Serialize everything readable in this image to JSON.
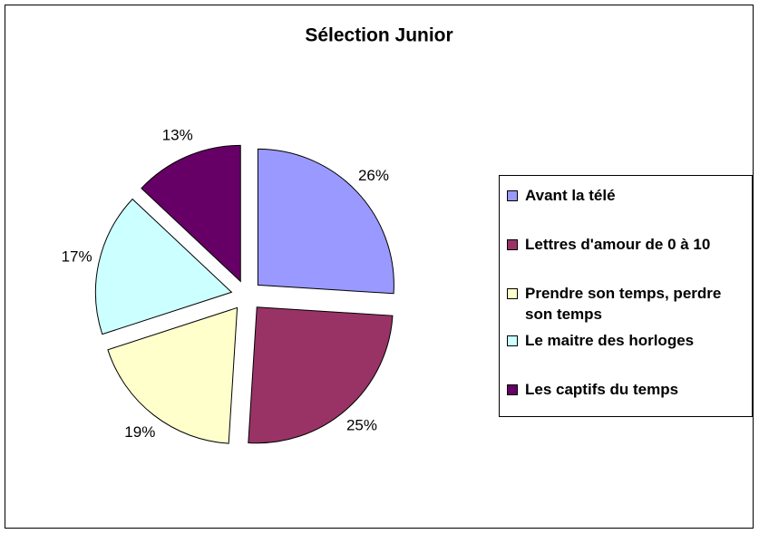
{
  "chart_data": {
    "type": "pie",
    "title": "Sélection Junior",
    "categories": [
      "Avant la télé",
      "Lettres d'amour de 0 à 10",
      "Prendre son temps, perdre son temps",
      "Le maitre des horloges",
      "Les captifs du temps"
    ],
    "values": [
      26,
      25,
      19,
      17,
      13
    ],
    "value_labels": [
      "26%",
      "25%",
      "19%",
      "17%",
      "13%"
    ],
    "colors": [
      "#9999ff",
      "#993366",
      "#ffffcc",
      "#ccffff",
      "#660066"
    ],
    "legend": "right"
  }
}
